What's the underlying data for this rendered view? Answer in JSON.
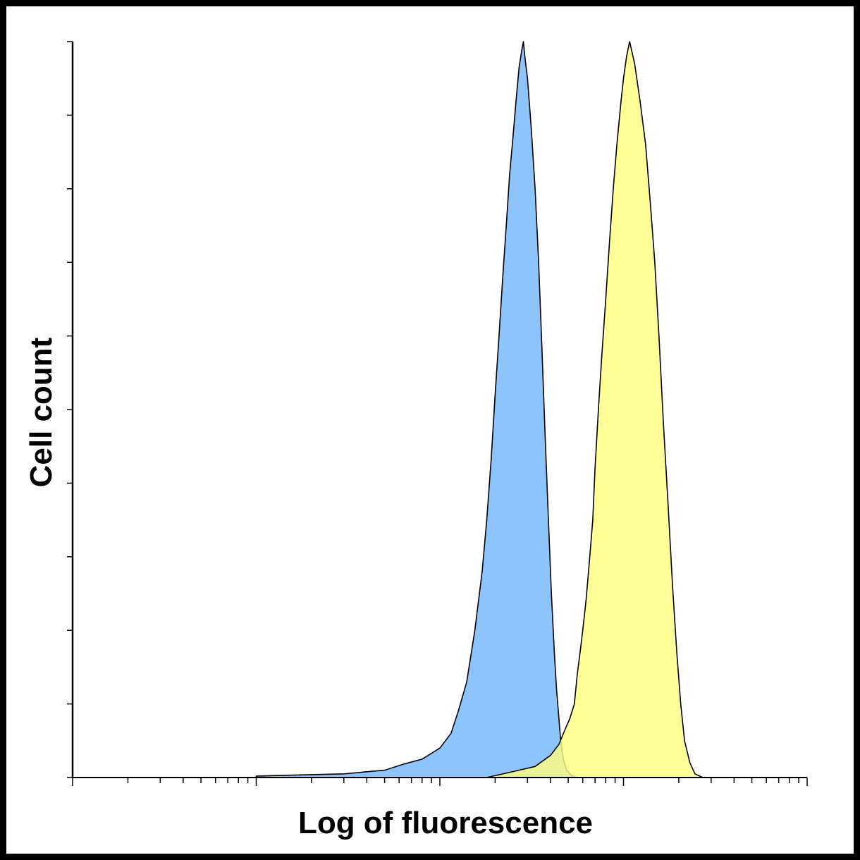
{
  "chart_data": {
    "type": "area",
    "title": "",
    "xlabel": "Log of fluorescence",
    "ylabel": "Cell count",
    "xscale": "log",
    "xlim": [
      1,
      10000
    ],
    "ylim": [
      0,
      100
    ],
    "grid": false,
    "legend": "none",
    "series": [
      {
        "color": "#8cc4fb",
        "points": [
          [
            10,
            0.2
          ],
          [
            30,
            0.5
          ],
          [
            50,
            1.0
          ],
          [
            63,
            1.8
          ],
          [
            80,
            2.5
          ],
          [
            100,
            4.0
          ],
          [
            115,
            6.0
          ],
          [
            126,
            9.0
          ],
          [
            140,
            13.0
          ],
          [
            155,
            20.0
          ],
          [
            170,
            28.0
          ],
          [
            180,
            35.0
          ],
          [
            190,
            43.0
          ],
          [
            200,
            52.0
          ],
          [
            210,
            60.0
          ],
          [
            220,
            68.0
          ],
          [
            230,
            75.0
          ],
          [
            240,
            82.0
          ],
          [
            250,
            87.0
          ],
          [
            260,
            92.0
          ],
          [
            270,
            96.5
          ],
          [
            280,
            99.0
          ],
          [
            285,
            100.0
          ],
          [
            290,
            98.0
          ],
          [
            300,
            95.0
          ],
          [
            315,
            88.0
          ],
          [
            330,
            80.0
          ],
          [
            345,
            70.0
          ],
          [
            360,
            58.0
          ],
          [
            375,
            46.0
          ],
          [
            390,
            35.0
          ],
          [
            405,
            25.0
          ],
          [
            420,
            17.0
          ],
          [
            432,
            12.0
          ],
          [
            445,
            8.0
          ],
          [
            455,
            5.0
          ],
          [
            470,
            2.5
          ],
          [
            490,
            1.0
          ],
          [
            520,
            0.3
          ],
          [
            560,
            0.0
          ]
        ]
      },
      {
        "color": "#ffff80",
        "points": [
          [
            180,
            0.0
          ],
          [
            250,
            0.8
          ],
          [
            330,
            1.5
          ],
          [
            400,
            3.0
          ],
          [
            445,
            4.5
          ],
          [
            480,
            6.5
          ],
          [
            510,
            8.0
          ],
          [
            540,
            10.0
          ],
          [
            560,
            14.0
          ],
          [
            580,
            17.0
          ],
          [
            600,
            20.0
          ],
          [
            625,
            24.0
          ],
          [
            650,
            29.0
          ],
          [
            680,
            35.0
          ],
          [
            700,
            42.0
          ],
          [
            730,
            50.0
          ],
          [
            760,
            57.0
          ],
          [
            800,
            65.0
          ],
          [
            840,
            73.0
          ],
          [
            880,
            80.0
          ],
          [
            920,
            86.0
          ],
          [
            970,
            92.0
          ],
          [
            1000,
            95.0
          ],
          [
            1040,
            98.0
          ],
          [
            1080,
            100.0
          ],
          [
            1150,
            97.0
          ],
          [
            1230,
            92.0
          ],
          [
            1320,
            86.0
          ],
          [
            1400,
            78.0
          ],
          [
            1480,
            70.0
          ],
          [
            1560,
            60.0
          ],
          [
            1650,
            48.0
          ],
          [
            1750,
            37.0
          ],
          [
            1850,
            26.0
          ],
          [
            1950,
            17.0
          ],
          [
            2050,
            10.0
          ],
          [
            2150,
            5.0
          ],
          [
            2300,
            2.0
          ],
          [
            2450,
            0.5
          ],
          [
            2700,
            0.0
          ]
        ]
      }
    ]
  }
}
